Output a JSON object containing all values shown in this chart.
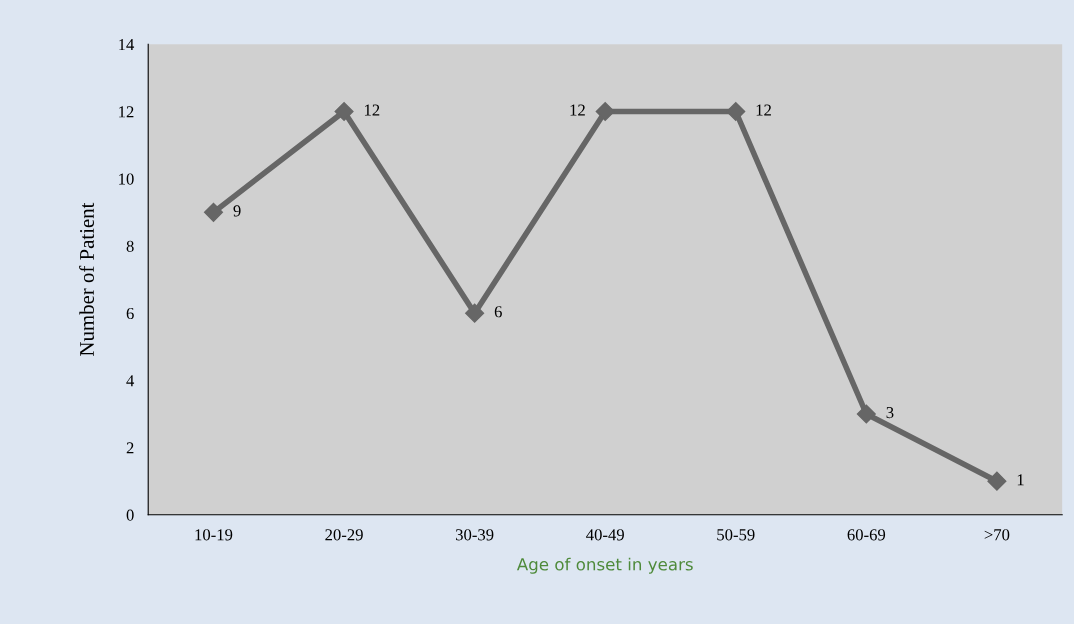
{
  "chart_data": {
    "type": "line",
    "xlabel": "Age of onset in years",
    "ylabel": "Number of Patient",
    "categories": [
      "10-19",
      "20-29",
      "30-39",
      "40-49",
      "50-59",
      "60-69",
      ">70"
    ],
    "series": [
      {
        "color": "#666666",
        "values": [
          9,
          12,
          6,
          12,
          12,
          3,
          1
        ]
      }
    ],
    "ylim": [
      0,
      14
    ],
    "yticks": [
      0,
      2,
      4,
      6,
      8,
      10,
      12,
      14
    ],
    "grid": false,
    "legend": false,
    "marker": "diamond",
    "line_style": "solid",
    "data_labels": true
  }
}
